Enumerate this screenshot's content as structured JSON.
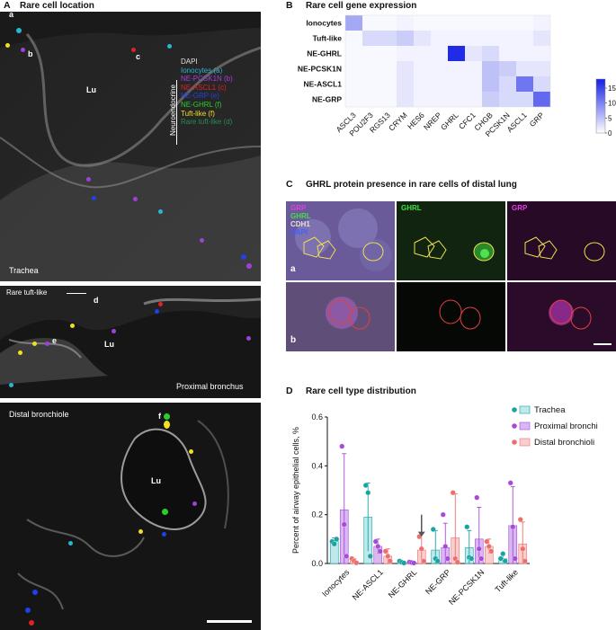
{
  "panel_a": {
    "letter": "A",
    "title": "Rare cell location",
    "legend": {
      "group_label": "Neuroendocrine",
      "items": [
        {
          "text": "DAPI",
          "color": "#e0e0e0"
        },
        {
          "text": "Ionocytes (a)",
          "color": "#29b6d6"
        },
        {
          "text": "NE-PCSK1N (b)",
          "color": "#a040d8"
        },
        {
          "text": "NE-ASCL1 (c)",
          "color": "#e0202a"
        },
        {
          "text": "NE-GRP (e)",
          "color": "#2040e8"
        },
        {
          "text": "NE-GHRL (f)",
          "color": "#28d028"
        },
        {
          "text": "Tuft-like (f)",
          "color": "#f0e020"
        },
        {
          "text": "Rare tuft-like (d)",
          "color": "#2a8a5a"
        }
      ]
    },
    "trachea": {
      "label": "Trachea",
      "lumen": "Lu",
      "marks": [
        "a",
        "b",
        "c"
      ]
    },
    "proximal": {
      "label": "Proximal bronchus",
      "lumen": "Lu",
      "marks": [
        "d",
        "e"
      ],
      "rare_label": "Rare tuft-like"
    },
    "distal": {
      "label": "Distal bronchiole",
      "lumen": "Lu",
      "marks": [
        "f"
      ]
    }
  },
  "panel_b": {
    "letter": "B",
    "title": "Rare cell gene expression",
    "chart_data": {
      "type": "heatmap",
      "rows": [
        "Ionocytes",
        "Tuft-like",
        "NE-GHRL",
        "NE-PCSK1N",
        "NE-ASCL1",
        "NE-GRP"
      ],
      "cols": [
        "ASCL3",
        "POU2F3",
        "RGS13",
        "CRYM",
        "HES6",
        "NREP",
        "GHRL",
        "CFC1",
        "CHGB",
        "PCSK1N",
        "ASCL1",
        "GRP"
      ],
      "values": [
        [
          7,
          0.5,
          0.5,
          1,
          0.5,
          0.5,
          0.5,
          0.5,
          0.5,
          0.5,
          0.5,
          1
        ],
        [
          0.5,
          3,
          3,
          4,
          2,
          1,
          1,
          1,
          1,
          1,
          1,
          2
        ],
        [
          0.5,
          0.5,
          0.5,
          1,
          1,
          1,
          17,
          2,
          3,
          1,
          1,
          1
        ],
        [
          0.5,
          0.5,
          0.5,
          2,
          1,
          1,
          1,
          1,
          5,
          4,
          2,
          2
        ],
        [
          0.5,
          0.5,
          0.5,
          2,
          1,
          1,
          1,
          1,
          5,
          3,
          11,
          3
        ],
        [
          0.5,
          0.5,
          0.5,
          2,
          1,
          1,
          1,
          1,
          4,
          3,
          3,
          12
        ]
      ],
      "colorbar": {
        "min": 0,
        "max": 18,
        "ticks": [
          0,
          5,
          10,
          15
        ]
      }
    }
  },
  "panel_c": {
    "letter": "C",
    "title": "GHRL protein presence in rare cells of distal lung",
    "merge_legend": [
      {
        "text": "GRP",
        "color": "#e040e0"
      },
      {
        "text": "GHRL",
        "color": "#40e040"
      },
      {
        "text": "CDH1",
        "color": "#e0e0e0"
      },
      {
        "text": "DAPI",
        "color": "#4060ff"
      }
    ],
    "ghrl_label": "GHRL",
    "grp_label": "GRP",
    "row_a": "a",
    "row_b": "b"
  },
  "panel_d": {
    "letter": "D",
    "title": "Rare cell type distribution",
    "chart_data": {
      "type": "bar",
      "ylabel": "Percent of airway epithelial cells, %",
      "ylim": [
        0,
        0.6
      ],
      "yticks": [
        "0.0",
        "0.2",
        "0.4",
        "0.6"
      ],
      "categories": [
        "Ionocytes",
        "NE-ASCL1",
        "NE-GHRL",
        "NE-GRP",
        "NE-PCSK1N",
        "Tuft-like"
      ],
      "series": [
        {
          "name": "Trachea",
          "color": "#1aa3a3",
          "fill": "#bfe9ec",
          "values": [
            0.09,
            0.19,
            0.005,
            0.055,
            0.065,
            0.02
          ],
          "err": [
            0.015,
            0.14,
            0.005,
            0.08,
            0.07,
            0.015
          ],
          "points": [
            [
              0.09,
              0.08,
              0.1
            ],
            [
              0.32,
              0.29,
              0.03
            ],
            [
              0.01,
              0.005,
              0.002
            ],
            [
              0.14,
              0.02,
              0.01
            ],
            [
              0.15,
              0.025,
              0.02
            ],
            [
              0.02,
              0.04,
              0.01
            ]
          ]
        },
        {
          "name": "Proximal bronchi",
          "color": "#a64ad8",
          "fill": "#d9b7f1",
          "values": [
            0.22,
            0.07,
            0.004,
            0.065,
            0.1,
            0.155
          ],
          "err": [
            0.23,
            0.03,
            0.004,
            0.1,
            0.13,
            0.16
          ],
          "points": [
            [
              0.48,
              0.16,
              0.03
            ],
            [
              0.09,
              0.07,
              0.05
            ],
            [
              0.006,
              0.004,
              0.002
            ],
            [
              0.2,
              0.07,
              0.02
            ],
            [
              0.27,
              0.06,
              0.02
            ],
            [
              0.33,
              0.15,
              0.02
            ]
          ]
        },
        {
          "name": "Distal bronchioli",
          "color": "#ee6e6e",
          "fill": "#f8cfcf",
          "values": [
            0.01,
            0.03,
            0.055,
            0.105,
            0.07,
            0.08
          ],
          "err": [
            0.01,
            0.03,
            0.07,
            0.18,
            0.03,
            0.09
          ],
          "points": [
            [
              0.02,
              0.01,
              0.003
            ],
            [
              0.05,
              0.03,
              0.01
            ],
            [
              0.11,
              0.06,
              0.01
            ],
            [
              0.29,
              0.02,
              0.005
            ],
            [
              0.09,
              0.07,
              0.05
            ],
            [
              0.18,
              0.06,
              0.01
            ]
          ]
        }
      ],
      "arrow_category": "NE-GHRL"
    }
  }
}
